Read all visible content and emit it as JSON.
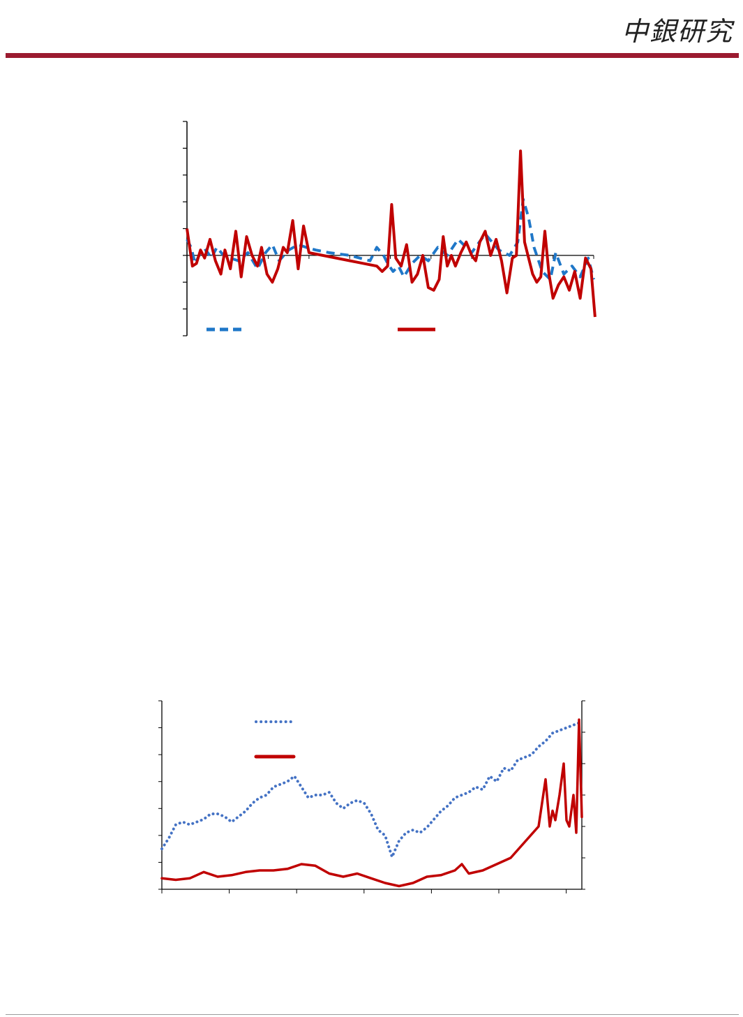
{
  "header": {
    "logo_text": "中銀研究",
    "rule_color": "#9b1b30"
  },
  "chart_data": [
    {
      "type": "line",
      "title": "",
      "xlabel": "",
      "ylabel": "",
      "ylim": [
        -3,
        5
      ],
      "xlim": [
        0,
        300
      ],
      "grid": false,
      "legend_position": "bottom",
      "series": [
        {
          "color": "#1f77c8",
          "style": "dashed",
          "x": [
            0,
            3,
            6,
            10,
            14,
            18,
            22,
            27,
            32,
            38,
            45,
            52,
            58,
            63,
            68,
            75,
            82,
            88,
            95,
            105,
            120,
            135,
            140,
            145,
            148,
            152,
            156,
            160,
            166,
            172,
            178,
            185,
            192,
            200,
            210,
            220,
            230,
            238,
            244,
            248,
            252,
            256,
            262,
            268,
            272,
            278,
            284,
            290,
            296,
            300
          ],
          "values": [
            0.6,
            0.3,
            -0.3,
            0.1,
            0.2,
            -0.1,
            0.3,
            0.0,
            -0.1,
            -0.2,
            0.1,
            -0.5,
            0.1,
            0.4,
            -0.2,
            0.2,
            0.4,
            0.3,
            0.2,
            0.1,
            0.0,
            -0.2,
            0.3,
            0.0,
            -0.3,
            -0.6,
            -0.4,
            -0.8,
            -0.3,
            0.0,
            -0.2,
            0.3,
            0.0,
            0.6,
            0.1,
            0.8,
            0.2,
            0.0,
            0.5,
            2.1,
            1.4,
            0.3,
            -0.6,
            -0.9,
            0.1,
            -0.7,
            -0.4,
            -0.8,
            -0.1,
            -0.9
          ]
        },
        {
          "color": "#c00000",
          "style": "solid",
          "x": [
            0,
            4,
            7,
            10,
            13,
            17,
            21,
            25,
            28,
            32,
            36,
            40,
            44,
            48,
            52,
            55,
            59,
            63,
            67,
            71,
            74,
            78,
            82,
            86,
            90,
            140,
            144,
            148,
            151,
            154,
            158,
            162,
            166,
            170,
            174,
            178,
            182,
            186,
            189,
            192,
            195,
            198,
            202,
            206,
            210,
            213,
            216,
            220,
            224,
            228,
            232,
            236,
            240,
            243,
            246,
            249,
            252,
            255,
            258,
            261,
            264,
            267,
            270,
            274,
            278,
            282,
            286,
            290,
            294,
            298,
            301
          ],
          "values": [
            1.0,
            -0.4,
            -0.3,
            0.2,
            -0.1,
            0.6,
            -0.2,
            -0.7,
            0.2,
            -0.5,
            0.9,
            -0.8,
            0.7,
            0.0,
            -0.4,
            0.3,
            -0.7,
            -1.0,
            -0.5,
            0.3,
            0.1,
            1.3,
            -0.5,
            1.1,
            0.1,
            -0.4,
            -0.6,
            -0.4,
            1.9,
            -0.1,
            -0.4,
            0.4,
            -1.0,
            -0.7,
            0.0,
            -1.2,
            -1.3,
            -0.9,
            0.7,
            -0.4,
            0.0,
            -0.4,
            0.1,
            0.5,
            0.0,
            -0.2,
            0.5,
            0.9,
            0.0,
            0.6,
            -0.2,
            -1.4,
            -0.1,
            0.0,
            3.9,
            0.5,
            -0.1,
            -0.7,
            -1.0,
            -0.8,
            0.9,
            -0.7,
            -1.6,
            -1.1,
            -0.8,
            -1.3,
            -0.6,
            -1.6,
            -0.1,
            -0.5,
            -2.3
          ]
        }
      ]
    },
    {
      "type": "line",
      "title": "",
      "xlabel": "",
      "ylabel": "",
      "ylim": [
        0,
        7
      ],
      "y2lim": [
        0,
        6
      ],
      "x_ticks": 7,
      "grid": false,
      "legend_position": "top-left",
      "series": [
        {
          "color": "#4472c4",
          "style": "dotted",
          "axis": "left",
          "x": [
            0,
            5,
            10,
            15,
            20,
            25,
            30,
            35,
            40,
            45,
            50,
            55,
            60,
            65,
            70,
            75,
            80,
            85,
            90,
            95,
            100,
            105,
            110,
            115,
            120,
            125,
            130,
            135,
            140,
            145,
            150,
            155,
            160,
            165,
            170,
            175,
            180,
            185,
            190,
            195,
            200,
            205,
            210,
            215,
            220,
            225,
            230,
            235,
            240,
            245,
            250,
            255,
            260,
            265,
            270,
            275,
            280,
            285,
            290,
            295,
            300
          ],
          "values": [
            1.5,
            1.9,
            2.4,
            2.5,
            2.4,
            2.5,
            2.6,
            2.8,
            2.8,
            2.7,
            2.5,
            2.7,
            2.9,
            3.2,
            3.4,
            3.5,
            3.8,
            3.9,
            4.0,
            4.2,
            3.8,
            3.4,
            3.5,
            3.5,
            3.6,
            3.2,
            3.0,
            3.2,
            3.3,
            3.2,
            2.8,
            2.2,
            2.0,
            1.2,
            1.8,
            2.1,
            2.2,
            2.1,
            2.3,
            2.6,
            2.9,
            3.1,
            3.4,
            3.5,
            3.6,
            3.8,
            3.7,
            4.2,
            4.0,
            4.5,
            4.4,
            4.8,
            4.9,
            5.0,
            5.3,
            5.5,
            5.8,
            5.9,
            6.0,
            6.1,
            6.2
          ]
        },
        {
          "color": "#c00000",
          "style": "solid",
          "axis": "right",
          "x": [
            0,
            10,
            20,
            30,
            40,
            50,
            60,
            70,
            80,
            90,
            100,
            110,
            120,
            130,
            140,
            150,
            160,
            170,
            180,
            190,
            200,
            210,
            215,
            220,
            230,
            240,
            250,
            260,
            270,
            275,
            278,
            280,
            282,
            285,
            288,
            290,
            292,
            295,
            297,
            299,
            301
          ],
          "values": [
            0.35,
            0.3,
            0.35,
            0.55,
            0.4,
            0.45,
            0.55,
            0.6,
            0.6,
            0.65,
            0.8,
            0.75,
            0.5,
            0.4,
            0.5,
            0.35,
            0.2,
            0.1,
            0.2,
            0.4,
            0.45,
            0.6,
            0.8,
            0.5,
            0.6,
            0.8,
            1.0,
            1.5,
            2.0,
            3.5,
            2.0,
            2.5,
            2.2,
            3.0,
            4.0,
            2.2,
            2.0,
            3.0,
            1.8,
            5.4,
            2.3
          ]
        }
      ]
    }
  ]
}
